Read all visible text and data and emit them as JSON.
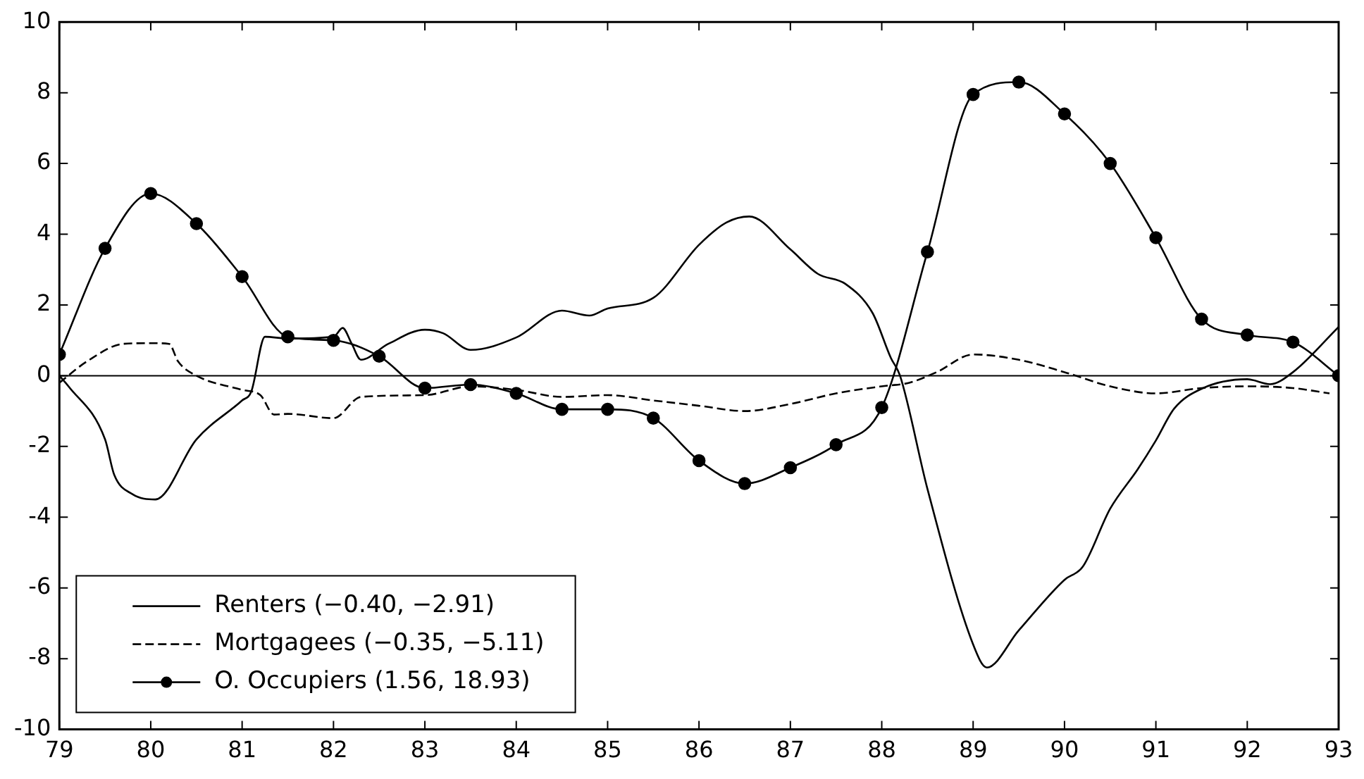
{
  "chart_data": {
    "type": "line",
    "xlim": [
      79,
      93
    ],
    "xticks": [
      79,
      80,
      81,
      82,
      83,
      84,
      85,
      86,
      87,
      88,
      89,
      90,
      91,
      92,
      93
    ],
    "ylim": [
      -10,
      10
    ],
    "yticks": [
      -10,
      -8,
      -6,
      -4,
      -2,
      0,
      2,
      4,
      6,
      8,
      10
    ],
    "grid": false,
    "legend": "bottom left",
    "ref_lines": [
      {
        "axis": "y",
        "value": 0,
        "color": "#000000"
      }
    ],
    "series": [
      {
        "name": "Renters (−0.40, −2.91)",
        "color": "#000000",
        "line_style": "solid",
        "marker": "none",
        "x": [
          79,
          79.1,
          79.5,
          79.6,
          79.8,
          80.05,
          80.5,
          81,
          81.1,
          81.25,
          81.5,
          82,
          82.1,
          82.2,
          82.3,
          82.6,
          83,
          83.2,
          83.5,
          84,
          84.5,
          84.8,
          85,
          85.5,
          86,
          86.3,
          86.55,
          87,
          87.3,
          87.6,
          87.9,
          88.1,
          88.2,
          88.5,
          89,
          89.15,
          89.5,
          90,
          90.2,
          90.5,
          90.8,
          91,
          91.2,
          91.5,
          92,
          92.25,
          92.5,
          93
        ],
        "values": [
          0,
          -0.3,
          -1.8,
          -2.8,
          -3.35,
          -3.5,
          -1.8,
          -0.7,
          -0.45,
          1.1,
          1.05,
          1.1,
          1.35,
          0.9,
          0.45,
          0.9,
          1.3,
          1.2,
          0.73,
          1.08,
          1.84,
          1.7,
          1.9,
          2.2,
          3.7,
          4.33,
          4.5,
          3.57,
          2.88,
          2.6,
          1.77,
          0.5,
          0,
          -3.2,
          -7.6,
          -8.25,
          -7.2,
          -5.77,
          -5.4,
          -3.76,
          -2.65,
          -1.83,
          -0.93,
          -0.37,
          -0.1,
          -0.24,
          0.1,
          1.38
        ]
      },
      {
        "name": "Mortgagees (−0.35, −5.11)",
        "color": "#000000",
        "line_style": "dashed",
        "marker": "none",
        "x": [
          79,
          79.3,
          79.7,
          80,
          80.2,
          80.3,
          80.5,
          81,
          81.2,
          81.35,
          81.5,
          82,
          82.3,
          83,
          83.5,
          84,
          84.5,
          85,
          85.5,
          86,
          86.5,
          87,
          87.5,
          88,
          88.3,
          88.6,
          89,
          89.5,
          90,
          90.5,
          91,
          91.5,
          92,
          92.5,
          92.9
        ],
        "values": [
          -0.2,
          0.4,
          0.9,
          0.92,
          0.9,
          0.4,
          0,
          -0.4,
          -0.55,
          -1.1,
          -1.08,
          -1.2,
          -0.6,
          -0.55,
          -0.3,
          -0.4,
          -0.6,
          -0.55,
          -0.7,
          -0.85,
          -1,
          -0.8,
          -0.5,
          -0.3,
          -0.2,
          0.1,
          0.6,
          0.45,
          0.1,
          -0.3,
          -0.5,
          -0.35,
          -0.3,
          -0.35,
          -0.5
        ]
      },
      {
        "name": "O. Occupiers (1.56, 18.93)",
        "color": "#000000",
        "line_style": "solid",
        "marker": "circle",
        "x": [
          79,
          79.5,
          80,
          80.5,
          81,
          81.5,
          82,
          82.5,
          83,
          83.5,
          84,
          84.5,
          85,
          85.5,
          86,
          86.5,
          87,
          87.5,
          88,
          88.5,
          89,
          89.5,
          90,
          90.5,
          91,
          91.5,
          92,
          92.5,
          93
        ],
        "values": [
          0.6,
          3.6,
          5.15,
          4.3,
          2.8,
          1.1,
          1,
          0.55,
          -0.35,
          -0.25,
          -0.5,
          -0.95,
          -0.95,
          -1.2,
          -2.4,
          -3.05,
          -2.6,
          -1.95,
          -0.9,
          3.5,
          7.95,
          8.3,
          7.4,
          6,
          3.9,
          1.6,
          1.15,
          0.95,
          0
        ]
      }
    ]
  }
}
